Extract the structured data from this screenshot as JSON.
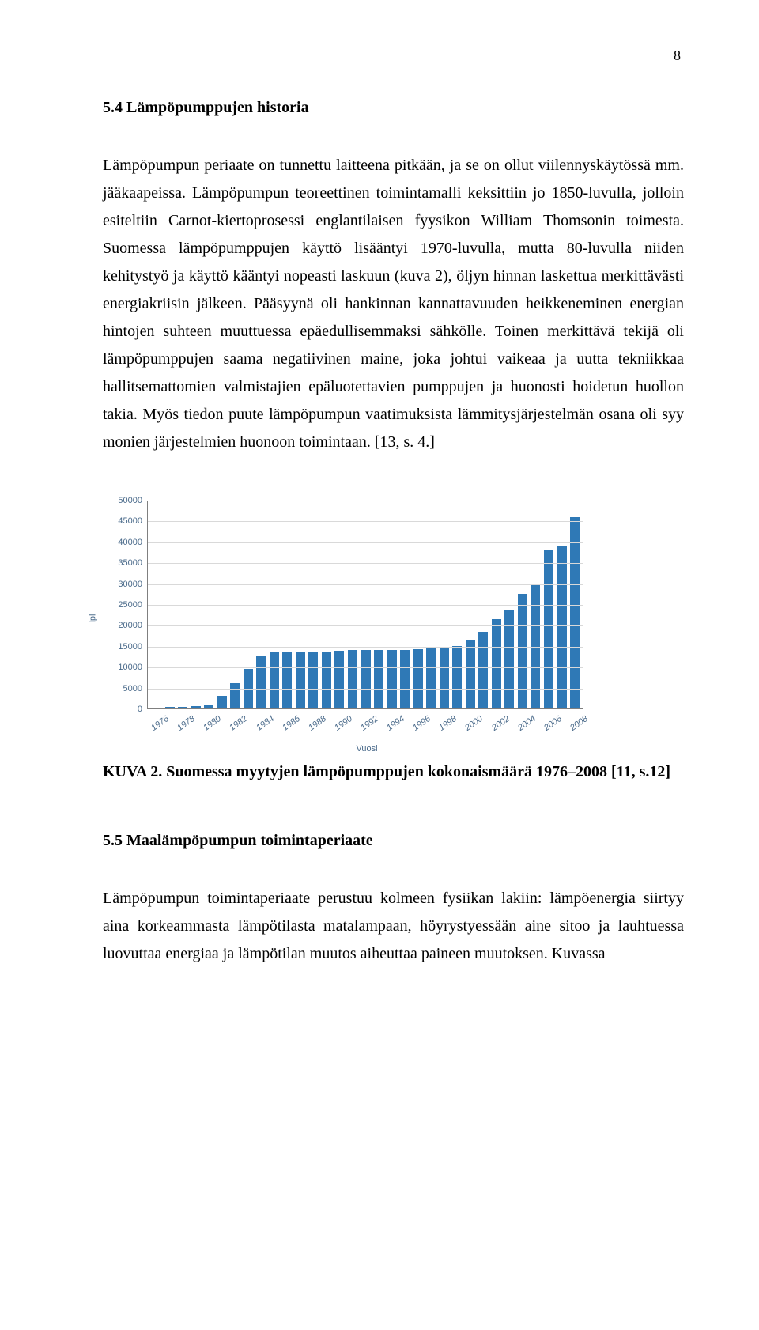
{
  "page_number": "8",
  "section_heading": "5.4  Lämpöpumppujen historia",
  "paragraph_1": "Lämpöpumpun periaate on tunnettu laitteena pitkään, ja se on ollut viilennyskäytössä mm. jääkaapeissa. Lämpöpumpun teoreettinen toimintamalli keksittiin jo 1850-luvulla, jolloin esiteltiin Carnot-kiertoprosessi englantilaisen fyysikon William Thomsonin toimesta. Suomessa lämpöpumppujen käyttö lisääntyi 1970-luvulla, mutta 80-luvulla niiden kehitystyö ja käyttö kääntyi nopeasti laskuun (kuva 2), öljyn hinnan laskettua merkittävästi energiakriisin jälkeen. Pääsyynä oli hankinnan kannattavuuden heikkeneminen energian hintojen suhteen muuttuessa epäedullisemmaksi sähkölle. Toinen merkittävä tekijä oli lämpöpumppujen saama negatiivinen maine, joka johtui vaikeaa ja uutta tekniikkaa hallitsemattomien valmistajien epäluotettavien pumppujen ja huonosti hoidetun huollon takia. Myös tiedon puute lämpöpumpun vaatimuksista lämmitysjärjestelmän osana oli syy monien järjestelmien huonoon toimintaan. [13, s. 4.]",
  "chart": {
    "type": "bar",
    "y_axis_title": "lpl",
    "x_axis_title": "Vuosi",
    "y_max": 50000,
    "y_tick_step": 5000,
    "y_ticks": [
      0,
      5000,
      10000,
      15000,
      20000,
      25000,
      30000,
      35000,
      40000,
      45000,
      50000
    ],
    "categories": [
      "1976",
      "1977",
      "1978",
      "1979",
      "1980",
      "1981",
      "1982",
      "1983",
      "1984",
      "1985",
      "1986",
      "1987",
      "1988",
      "1989",
      "1990",
      "1991",
      "1992",
      "1993",
      "1994",
      "1995",
      "1996",
      "1997",
      "1998",
      "1999",
      "2000",
      "2001",
      "2002",
      "2003",
      "2004",
      "2005",
      "2006",
      "2007",
      "2008"
    ],
    "x_label_every": 2,
    "values": [
      200,
      300,
      400,
      550,
      1000,
      3000,
      6000,
      9500,
      12500,
      13500,
      13500,
      13500,
      13500,
      13500,
      13800,
      14000,
      14000,
      14000,
      14000,
      14000,
      14300,
      14500,
      14800,
      15000,
      16500,
      18500,
      21500,
      23500,
      27500,
      30000,
      38000,
      39000,
      46000
    ],
    "bar_color": "#2f79b6",
    "grid_color": "#d9d9d9",
    "axis_color": "#7f7f7f",
    "label_color": "#4a6a8a",
    "background_color": "#ffffff",
    "label_fontsize": 11,
    "label_font": "Arial"
  },
  "figure_caption": "KUVA 2. Suomessa myytyjen lämpöpumppujen kokonaismäärä 1976–2008 [11, s.12]",
  "sub_section_heading": "5.5  Maalämpöpumpun toimintaperiaate",
  "paragraph_2": "Lämpöpumpun toimintaperiaate perustuu kolmeen fysiikan lakiin: lämpöenergia siirtyy aina korkeammasta lämpötilasta matalampaan, höyrystyessään aine sitoo ja lauhtuessa luovuttaa energiaa ja lämpötilan muutos aiheuttaa paineen muutoksen. Kuvassa"
}
